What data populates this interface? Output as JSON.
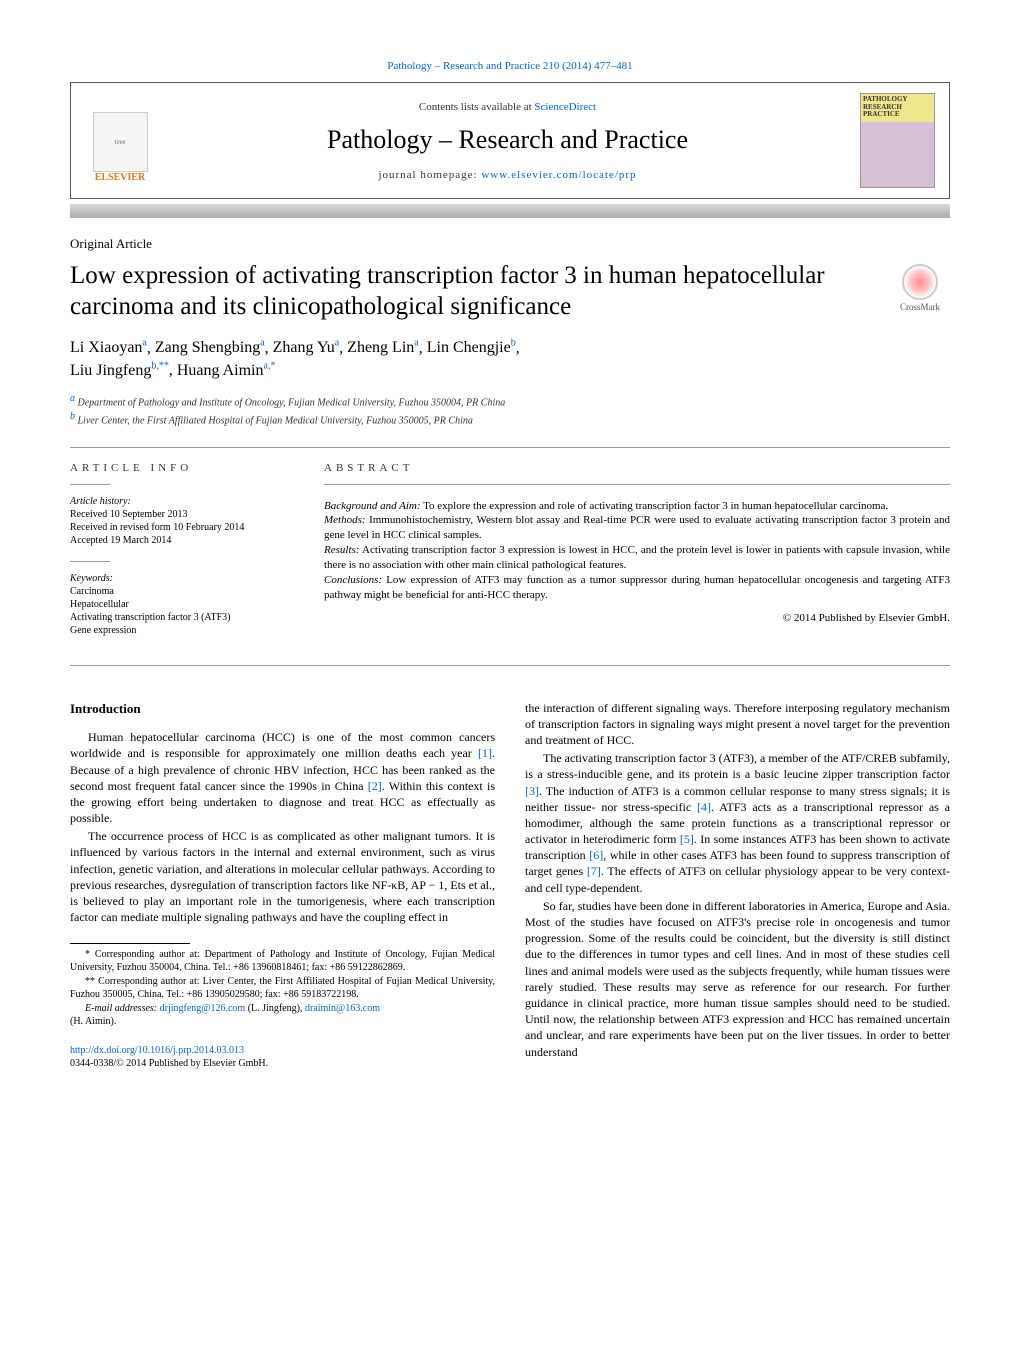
{
  "meta": {
    "citation_header": "Pathology – Research and Practice 210 (2014) 477–481",
    "contents_prefix": "Contents lists available at ",
    "contents_link": "ScienceDirect",
    "journal_title": "Pathology – Research and Practice",
    "homepage_prefix": "journal homepage: ",
    "homepage_url": "www.elsevier.com/locate/prp",
    "elsevier": "ELSEVIER",
    "cover_label_1": "PATHOLOGY",
    "cover_label_2": "RESEARCH",
    "cover_label_3": "PRACTICE"
  },
  "article": {
    "type": "Original Article",
    "title": "Low expression of activating transcription factor 3 in human hepatocellular carcinoma and its clinicopathological significance",
    "crossmark": "CrossMark",
    "authors": [
      {
        "name": "Li Xiaoyan",
        "sup": "a"
      },
      {
        "name": "Zang Shengbing",
        "sup": "a"
      },
      {
        "name": "Zhang Yu",
        "sup": "a"
      },
      {
        "name": "Zheng Lin",
        "sup": "a"
      },
      {
        "name": "Lin Chengjie",
        "sup": "b"
      },
      {
        "name": "Liu Jingfeng",
        "sup": "b,**"
      },
      {
        "name": "Huang Aimin",
        "sup": "a,*"
      }
    ],
    "affiliations": [
      {
        "sup": "a",
        "text": "Department of Pathology and Institute of Oncology, Fujian Medical University, Fuzhou 350004, PR China"
      },
      {
        "sup": "b",
        "text": "Liver Center, the First Affiliated Hospital of Fujian Medical University, Fuzhou 350005, PR China"
      }
    ]
  },
  "info": {
    "heading": "article info",
    "history_label": "Article history:",
    "received": "Received 10 September 2013",
    "revised": "Received in revised form 10 February 2014",
    "accepted": "Accepted 19 March 2014",
    "keywords_label": "Keywords:",
    "keywords": [
      "Carcinoma",
      "Hepatocellular",
      "Activating transcription factor 3 (ATF3)",
      "Gene expression"
    ]
  },
  "abstract": {
    "heading": "abstract",
    "background_label": "Background and Aim:",
    "background": " To explore the expression and role of activating transcription factor 3 in human hepatocellular carcinoma.",
    "methods_label": "Methods:",
    "methods": " Immunohistochemistry, Western blot assay and Real-time PCR were used to evaluate activating transcription factor 3 protein and gene level in HCC clinical samples.",
    "results_label": "Results:",
    "results": " Activating transcription factor 3 expression is lowest in HCC, and the protein level is lower in patients with capsule invasion, while there is no association with other main clinical pathological features.",
    "conclusions_label": "Conclusions:",
    "conclusions": " Low expression of ATF3 may function as a tumor suppressor during human hepatocellular oncogenesis and targeting ATF3 pathway might be beneficial for anti-HCC therapy.",
    "copyright": "© 2014 Published by Elsevier GmbH."
  },
  "body": {
    "intro_heading": "Introduction",
    "p1a": "Human hepatocellular carcinoma (HCC) is one of the most common cancers worldwide and is responsible for approximately one million deaths each year ",
    "ref1": "[1]",
    "p1b": ". Because of a high prevalence of chronic HBV infection, HCC has been ranked as the second most frequent fatal cancer since the 1990s in China ",
    "ref2": "[2]",
    "p1c": ". Within this context is the growing effort being undertaken to diagnose and treat HCC as effectually as possible.",
    "p2": "The occurrence process of HCC is as complicated as other malignant tumors. It is influenced by various factors in the internal and external environment, such as virus infection, genetic variation, and alterations in molecular cellular pathways. According to previous researches, dysregulation of transcription factors like NF-κB, AP − 1, Ets et al., is believed to play an important role in the tumorigenesis, where each transcription factor can mediate multiple signaling pathways and have the coupling effect in",
    "p3": "the interaction of different signaling ways. Therefore interposing regulatory mechanism of transcription factors in signaling ways might present a novel target for the prevention and treatment of HCC.",
    "p4a": "The activating transcription factor 3 (ATF3), a member of the ATF/CREB subfamily, is a stress-inducible gene, and its protein is a basic leucine zipper transcription factor ",
    "ref3": "[3]",
    "p4b": ". The induction of ATF3 is a common cellular response to many stress signals; it is neither tissue- nor stress-specific ",
    "ref4": "[4]",
    "p4c": ". ATF3 acts as a transcriptional repressor as a homodimer, although the same protein functions as a transcriptional repressor or activator in heterodimeric form ",
    "ref5": "[5]",
    "p4d": ". In some instances ATF3 has been shown to activate transcription ",
    "ref6": "[6]",
    "p4e": ", while in other cases ATF3 has been found to suppress transcription of target genes ",
    "ref7": "[7]",
    "p4f": ". The effects of ATF3 on cellular physiology appear to be very context- and cell type-dependent.",
    "p5": "So far, studies have been done in different laboratories in America, Europe and Asia. Most of the studies have focused on ATF3's precise role in oncogenesis and tumor progression. Some of the results could be coincident, but the diversity is still distinct due to the differences in tumor types and cell lines. And in most of these studies cell lines and animal models were used as the subjects frequently, while human tissues were rarely studied. These results may serve as reference for our research. For further guidance in clinical practice, more human tissue samples should need to be studied. Until now, the relationship between ATF3 expression and HCC has remained uncertain and unclear, and rare experiments have been put on the liver tissues. In order to better understand"
  },
  "footnotes": {
    "star": "* Corresponding author at: Department of Pathology and Institute of Oncology, Fujian Medical University, Fuzhou 350004, China. Tel.: +86 13960818461; fax: +86 59122862869.",
    "dstar": "** Corresponding author at: Liver Center, the First Affiliated Hospital of Fujian Medical University, Fuzhou 350005, China. Tel.: +86 13905029580; fax: +86 59183722198.",
    "email_label": "E-mail addresses: ",
    "email1": "drjingfeng@126.com",
    "email1_who": " (L. Jingfeng), ",
    "email2": "draimin@163.com",
    "email2_who": " (H. Aimin)."
  },
  "footer": {
    "doi": "http://dx.doi.org/10.1016/j.prp.2014.03.013",
    "issn_line": "0344-0338/© 2014 Published by Elsevier GmbH."
  },
  "colors": {
    "link": "#0066cc",
    "elsevier": "#e67817",
    "bar_top": "#dcdcdc",
    "bar_bottom": "#a8a8a8"
  }
}
